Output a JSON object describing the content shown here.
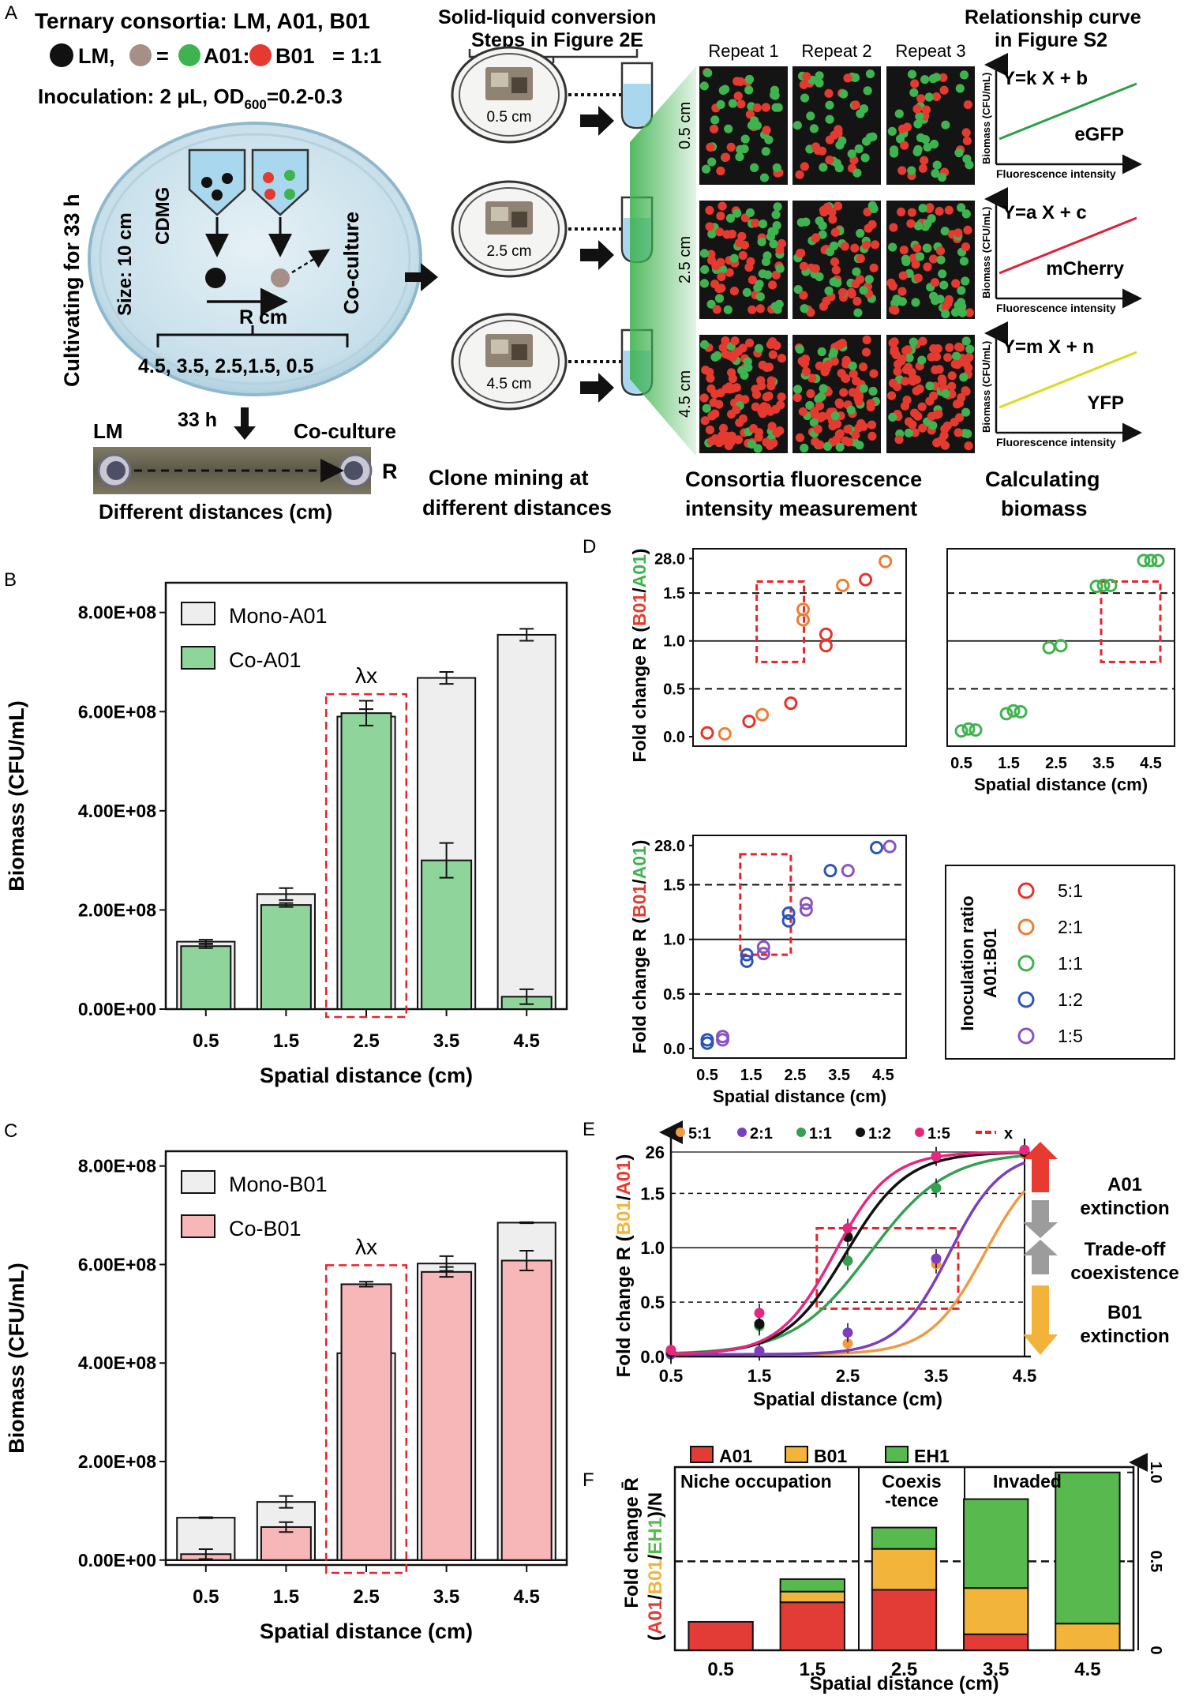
{
  "colors": {
    "a01_green": "#3fb34f",
    "b01_red": "#e53a2f",
    "lm_black": "#111111",
    "mix_brown": "#a58f87",
    "mono_fill": "#eeeeee",
    "co_a01_fill": "#8fd49b",
    "co_b01_fill": "#f7b6b8",
    "dash_red": "#e8232a",
    "egfp": "#2ea043",
    "mcherry": "#e0213a",
    "yfp": "#d7dc1e",
    "broth": "#a9d8ee",
    "dish": "#c5dde8",
    "ratio_5_1": "#e8312c",
    "ratio_2_1": "#ef7d31",
    "ratio_1_1": "#3fb34f",
    "ratio_1_2": "#2c55b8",
    "ratio_1_5": "#8b52c4",
    "e_5_1": "#f29a43",
    "e_2_1": "#7a3fbf",
    "e_1_1": "#36a052",
    "e_1_2": "#111111",
    "e_1_5": "#e6277f",
    "f_a01": "#e33b35",
    "f_b01": "#f2b43a",
    "f_eh1": "#58b94f"
  },
  "panel_a": {
    "label": "A",
    "title": "Ternary consortia: LM, A01, B01",
    "legend_lm": "LM,",
    "legend_eq": "=",
    "legend_a01": "A01:",
    "legend_b01": "B01",
    "legend_ratio": "= 1:1",
    "inoculation": "Inoculation: 2 μL, OD",
    "od_sub": "600",
    "od_val": "=0.2-0.3",
    "cultivating": "Cultivating for 33 h",
    "size": "Size: 10 cm",
    "cdmg": "CDMG",
    "coculture_vertical": "Co-culture",
    "r_cm": "R cm",
    "distances": "4.5, 3.5, 2.5,1.5, 0.5",
    "hours": "33 h",
    "photo_lm": "LM",
    "photo_co": "Co-culture",
    "photo_r": "R",
    "photo_caption": "Different distances (cm)",
    "conversion_title_1": "Solid-liquid conversion",
    "conversion_title_2": "Steps in Figure 2E",
    "dish_labels": [
      "0.5 cm",
      "2.5 cm",
      "4.5 cm"
    ],
    "clone_mining_1": "Clone mining at",
    "clone_mining_2": "different distances",
    "repeats": [
      "Repeat 1",
      "Repeat 2",
      "Repeat 3"
    ],
    "row_labels": [
      "0.5 cm",
      "2.5 cm",
      "4.5 cm"
    ],
    "consortia_1": "Consortia fluorescence",
    "consortia_2": "intensity measurement",
    "relationship_1": "Relationship curve",
    "relationship_2": "in Figure S2",
    "curves": [
      {
        "eq": "Y=k X + b",
        "name": "eGFP"
      },
      {
        "eq": "Y=a X + c",
        "name": "mCherry"
      },
      {
        "eq": "Y=m X + n",
        "name": "YFP"
      }
    ],
    "curve_ylabel": "Biomass (CFU/mL)",
    "curve_xlabel": "Fluorescence intensity",
    "calc_1": "Calculating",
    "calc_2": "biomass"
  },
  "chart_data": [
    {
      "id": "B",
      "type": "bar",
      "categories": [
        "0.5",
        "1.5",
        "2.5",
        "3.5",
        "4.5"
      ],
      "series": [
        {
          "name": "Mono-A01",
          "values": [
            136000000.0,
            232000000.0,
            590000000.0,
            668000000.0,
            755000000.0
          ],
          "errors": [
            4000000.0,
            12000000.0,
            15000000.0,
            12000000.0,
            12000000.0
          ]
        },
        {
          "name": "Co-A01",
          "values": [
            127000000.0,
            210000000.0,
            597000000.0,
            300000000.0,
            25000000.0
          ],
          "errors": [
            4000000.0,
            4000000.0,
            25000000.0,
            35000000.0,
            15000000.0
          ]
        }
      ],
      "yticks": [
        "0.00E+00",
        "2.00E+08",
        "4.00E+08",
        "6.00E+08",
        "8.00E+08"
      ],
      "ylim": [
        0,
        860000000.0
      ],
      "xlabel": "Spatial distance (cm)",
      "ylabel": "Biomass (CFU/mL)",
      "annotation": "λx",
      "highlight_category": "2.5"
    },
    {
      "id": "C",
      "type": "bar",
      "categories": [
        "0.5",
        "1.5",
        "2.5",
        "3.5",
        "4.5"
      ],
      "series": [
        {
          "name": "Mono-B01",
          "values": [
            86000000.0,
            118000000.0,
            420000000.0,
            602000000.0,
            685000000.0
          ],
          "errors": [
            1000000.0,
            12000000.0,
            1000000.0,
            15000000.0,
            1000000.0
          ]
        },
        {
          "name": "Co-B01",
          "values": [
            12000000.0,
            67000000.0,
            560000000.0,
            585000000.0,
            608000000.0
          ],
          "errors": [
            10000000.0,
            10000000.0,
            5000000.0,
            10000000.0,
            20000000.0
          ]
        }
      ],
      "yticks": [
        "0.00E+00",
        "2.00E+08",
        "4.00E+08",
        "6.00E+08",
        "8.00E+08"
      ],
      "ylim": [
        -10000000.0,
        830000000.0
      ],
      "xlabel": "Spatial distance (cm)",
      "ylabel": "Biomass (CFU/mL)",
      "annotation": "λx",
      "highlight_category": "2.5"
    },
    {
      "id": "D",
      "type": "scatter",
      "x_ticks": [
        "0.5",
        "1.5",
        "2.5",
        "3.5",
        "4.5"
      ],
      "y_ticks": [
        "0.0",
        "0.5",
        "1.0",
        "1.5",
        "28.0"
      ],
      "xlabel": "Spatial distance (cm)",
      "ylabel_prefix": "Fold change R (",
      "ylabel_num": "B01",
      "ylabel_sep": "/",
      "ylabel_den": "A01",
      "ylabel_suffix": ")",
      "legend_title_1": "Inoculation ratio",
      "legend_title_2": "A01:B01",
      "legend_items": [
        "5:1",
        "2:1",
        "1:1",
        "1:2",
        "1:5"
      ],
      "subpanels": [
        {
          "name": "5:1 and 2:1",
          "points": [
            {
              "r": "5:1",
              "x": 0.5,
              "y": 0.04
            },
            {
              "r": "2:1",
              "x": 0.9,
              "y": 0.03
            },
            {
              "r": "5:1",
              "x": 1.45,
              "y": 0.16
            },
            {
              "r": "2:1",
              "x": 1.75,
              "y": 0.23
            },
            {
              "r": "5:1",
              "x": 2.4,
              "y": 0.35
            },
            {
              "r": "2:1",
              "x": 2.68,
              "y": 1.22
            },
            {
              "r": "2:1",
              "x": 2.68,
              "y": 1.33
            },
            {
              "r": "5:1",
              "x": 3.2,
              "y": 0.95
            },
            {
              "r": "5:1",
              "x": 3.2,
              "y": 1.07
            },
            {
              "r": "2:1",
              "x": 3.58,
              "y": 1.58
            },
            {
              "r": "5:1",
              "x": 4.1,
              "y": 1.64
            },
            {
              "r": "2:1",
              "x": 4.55,
              "y": 1.83
            }
          ]
        },
        {
          "name": "1:1",
          "points": [
            {
              "r": "1:1",
              "x": 0.5,
              "y": 0.06
            },
            {
              "r": "1:1",
              "x": 0.65,
              "y": 0.08
            },
            {
              "r": "1:1",
              "x": 0.8,
              "y": 0.07
            },
            {
              "r": "1:1",
              "x": 1.45,
              "y": 0.24
            },
            {
              "r": "1:1",
              "x": 1.6,
              "y": 0.27
            },
            {
              "r": "1:1",
              "x": 1.75,
              "y": 0.26
            },
            {
              "r": "1:1",
              "x": 2.35,
              "y": 0.93
            },
            {
              "r": "1:1",
              "x": 2.6,
              "y": 0.95
            },
            {
              "r": "1:1",
              "x": 3.35,
              "y": 1.57
            },
            {
              "r": "1:1",
              "x": 3.5,
              "y": 1.58
            },
            {
              "r": "1:1",
              "x": 3.65,
              "y": 1.58
            },
            {
              "r": "1:1",
              "x": 4.35,
              "y": 1.84
            },
            {
              "r": "1:1",
              "x": 4.5,
              "y": 1.84
            },
            {
              "r": "1:1",
              "x": 4.65,
              "y": 1.84
            }
          ]
        },
        {
          "name": "1:2 and 1:5",
          "points": [
            {
              "r": "1:2",
              "x": 0.5,
              "y": 0.05
            },
            {
              "r": "1:5",
              "x": 0.85,
              "y": 0.08
            },
            {
              "r": "1:2",
              "x": 0.5,
              "y": 0.08
            },
            {
              "r": "1:5",
              "x": 0.85,
              "y": 0.11
            },
            {
              "r": "1:2",
              "x": 1.4,
              "y": 0.8
            },
            {
              "r": "1:2",
              "x": 1.4,
              "y": 0.86
            },
            {
              "r": "1:5",
              "x": 1.78,
              "y": 0.87
            },
            {
              "r": "1:5",
              "x": 1.78,
              "y": 0.93
            },
            {
              "r": "1:2",
              "x": 2.35,
              "y": 1.17
            },
            {
              "r": "1:2",
              "x": 2.35,
              "y": 1.24
            },
            {
              "r": "1:5",
              "x": 2.75,
              "y": 1.27
            },
            {
              "r": "1:5",
              "x": 2.75,
              "y": 1.33
            },
            {
              "r": "1:2",
              "x": 3.3,
              "y": 1.63
            },
            {
              "r": "1:5",
              "x": 3.7,
              "y": 1.63
            },
            {
              "r": "1:2",
              "x": 4.35,
              "y": 1.84
            },
            {
              "r": "1:5",
              "x": 4.65,
              "y": 1.85
            }
          ]
        }
      ]
    },
    {
      "id": "E",
      "type": "line",
      "x_ticks": [
        "0.5",
        "1.5",
        "2.5",
        "3.5",
        "4.5"
      ],
      "y_ticks": [
        "0.0",
        "0.5",
        "1.0",
        "1.5",
        "26"
      ],
      "xlabel": "Spatial distance (cm)",
      "ylabel_prefix": "Fold change R (",
      "ylabel_num": "B01",
      "ylabel_sep": "/",
      "ylabel_den": "A01",
      "ylabel_suffix": ")",
      "legend": [
        "5:1",
        "2:1",
        "1:1",
        "1:2",
        "1:5",
        "x"
      ],
      "series": [
        {
          "name": "5:1",
          "points": [
            [
              0.5,
              0.02
            ],
            [
              1.5,
              0.05
            ],
            [
              2.5,
              0.12
            ],
            [
              3.5,
              0.85
            ],
            [
              4.5,
              1.86
            ]
          ],
          "midpoint": 4.05,
          "steep": 3.2
        },
        {
          "name": "2:1",
          "points": [
            [
              0.5,
              0.02
            ],
            [
              1.5,
              0.05
            ],
            [
              2.5,
              0.22
            ],
            [
              3.5,
              0.9
            ],
            [
              4.5,
              1.88
            ]
          ],
          "midpoint": 3.65,
          "steep": 3.4
        },
        {
          "name": "1:1",
          "points": [
            [
              0.5,
              0.06
            ],
            [
              1.5,
              0.28
            ],
            [
              2.5,
              0.88
            ],
            [
              3.5,
              1.55
            ],
            [
              4.5,
              1.88
            ]
          ],
          "midpoint": 2.75,
          "steep": 2.3
        },
        {
          "name": "1:2",
          "points": [
            [
              0.5,
              0.04
            ],
            [
              1.5,
              0.3
            ],
            [
              2.5,
              1.1
            ],
            [
              3.5,
              1.84
            ],
            [
              4.5,
              1.88
            ]
          ],
          "midpoint": 2.48,
          "steep": 2.9
        },
        {
          "name": "1:5",
          "points": [
            [
              0.5,
              0.06
            ],
            [
              1.5,
              0.4
            ],
            [
              2.5,
              1.18
            ],
            [
              3.5,
              1.84
            ],
            [
              4.5,
              1.9
            ]
          ],
          "midpoint": 2.35,
          "steep": 3.2
        }
      ],
      "right_labels": [
        "A01",
        "extinction",
        "Trade-off",
        "coexistence",
        "B01",
        "extinction"
      ]
    },
    {
      "id": "F",
      "type": "bar",
      "stacked": true,
      "categories": [
        "0.5",
        "1.5",
        "2.5",
        "3.5",
        "4.5"
      ],
      "series": [
        {
          "name": "A01",
          "values": [
            0.16,
            0.27,
            0.34,
            0.09,
            0
          ]
        },
        {
          "name": "B01",
          "values": [
            0,
            0.06,
            0.23,
            0.26,
            0.15
          ]
        },
        {
          "name": "EH1",
          "values": [
            0,
            0.07,
            0.12,
            0.5,
            0.85
          ]
        }
      ],
      "ylim": [
        0,
        1.03
      ],
      "yticks": [
        "0",
        "0.5",
        "1.0"
      ],
      "dashed_line": 0.5,
      "regions": [
        "Niche occupation",
        "Coexis",
        "-tence",
        "Invaded"
      ],
      "xlabel": "Spatial distance (cm)",
      "ylabel_top": "Fold change R̄",
      "ylabel_a": "A01",
      "ylabel_b": "B01",
      "ylabel_c": "EH1",
      "ylabel_n": ")/N",
      "ylabel_open": "("
    }
  ],
  "panel_labels": {
    "b": "B",
    "c": "C",
    "d": "D",
    "e": "E",
    "f": "F"
  }
}
